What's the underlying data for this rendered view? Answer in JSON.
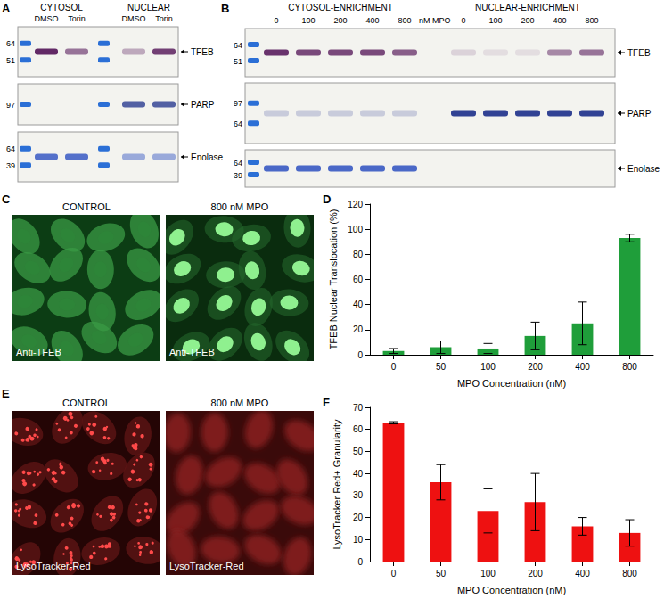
{
  "panels": {
    "A": {
      "letter": "A",
      "fractions": [
        {
          "label": "CYTOSOL",
          "lanes": [
            "DMSO",
            "Torin"
          ]
        },
        {
          "label": "NUCLEAR",
          "lanes": [
            "DMSO",
            "Torin"
          ]
        }
      ],
      "blots": [
        {
          "target": "TFEB",
          "ladder": [
            64,
            51
          ],
          "bands": [
            0.95,
            0.6,
            0.35,
            0.85
          ]
        },
        {
          "target": "PARP",
          "ladder": [
            97
          ],
          "bands": [
            0,
            0,
            0.75,
            0.75
          ]
        },
        {
          "target": "Enolase",
          "ladder": [
            64,
            39
          ],
          "bands": [
            0.8,
            0.8,
            0.45,
            0.45
          ]
        }
      ]
    },
    "B": {
      "letter": "B",
      "fractions": [
        {
          "label": "CYTOSOL-ENRICHMENT",
          "lanes": [
            0,
            100,
            200,
            400,
            800
          ]
        },
        {
          "label": "NUCLEAR-ENRICHMENT",
          "lanes": [
            0,
            100,
            200,
            400,
            800
          ]
        }
      ],
      "unit": "nM MPO",
      "blots": [
        {
          "target": "TFEB",
          "ladder": [
            64,
            51
          ],
          "bands": [
            0.9,
            0.8,
            0.8,
            0.8,
            0.7,
            0.15,
            0.1,
            0.1,
            0.5,
            0.6
          ]
        },
        {
          "target": "PARP",
          "ladder": [
            97,
            64
          ],
          "bands": [
            0.2,
            0.2,
            0.2,
            0.2,
            0.2,
            0.9,
            0.9,
            0.9,
            0.9,
            0.9
          ]
        },
        {
          "target": "Enolase",
          "ladder": [
            64,
            39
          ],
          "bands": [
            0.85,
            0.85,
            0.85,
            0.85,
            0.85,
            0,
            0,
            0,
            0,
            0
          ]
        }
      ]
    },
    "C": {
      "letter": "C",
      "images": [
        {
          "title": "CONTROL",
          "caption": "Anti-TFEB"
        },
        {
          "title": "800 nM MPO",
          "caption": "Anti-TFEB"
        }
      ]
    },
    "D": {
      "letter": "D"
    },
    "E": {
      "letter": "E",
      "images": [
        {
          "title": "CONTROL",
          "caption": "LysoTracker-Red"
        },
        {
          "title": "800 nM MPO",
          "caption": "LysoTracker-Red"
        }
      ]
    },
    "F": {
      "letter": "F"
    }
  },
  "chart_data": [
    {
      "type": "bar",
      "x_label": "MPO Concentration (nM)",
      "y_label": "TFEB Nuclear Translocation (%)",
      "categories": [
        "0",
        "50",
        "100",
        "200",
        "400",
        "800"
      ],
      "values": [
        3,
        6,
        5,
        15,
        25,
        93
      ],
      "errors": [
        2,
        5,
        4,
        11,
        17,
        3
      ],
      "color": "#1f9e3a",
      "ylim": [
        0,
        120
      ],
      "yticks": [
        0,
        20,
        40,
        60,
        80,
        100,
        120
      ],
      "grid": false
    },
    {
      "type": "bar",
      "x_label": "MPO Concentration (nM)",
      "y_label": "LysoTracker Red+ Granularity",
      "categories": [
        "0",
        "50",
        "100",
        "200",
        "400",
        "800"
      ],
      "values": [
        63,
        36,
        23,
        27,
        16,
        13
      ],
      "errors": [
        0.5,
        8,
        10,
        13,
        4,
        6
      ],
      "color": "#ee1111",
      "ylim": [
        0,
        70
      ],
      "yticks": [
        0,
        10,
        20,
        30,
        40,
        50,
        60,
        70
      ],
      "grid": false
    }
  ]
}
